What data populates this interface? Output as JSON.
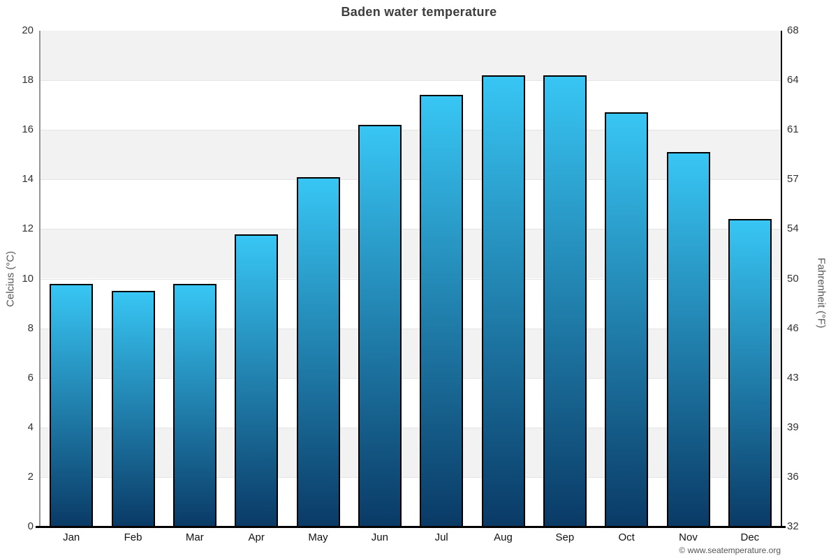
{
  "chart_data": {
    "type": "bar",
    "title": "Baden water temperature",
    "categories": [
      "Jan",
      "Feb",
      "Mar",
      "Apr",
      "May",
      "Jun",
      "Jul",
      "Aug",
      "Sep",
      "Oct",
      "Nov",
      "Dec"
    ],
    "values": [
      9.8,
      9.5,
      9.8,
      11.8,
      14.1,
      16.2,
      17.4,
      18.2,
      18.2,
      16.7,
      15.1,
      12.4
    ],
    "unit": "°C",
    "ylabel_left": "Celcius (°C)",
    "ylabel_right": "Fahrenheit (°F)",
    "ylim": [
      0,
      20
    ],
    "yticks_left": [
      0,
      2,
      4,
      6,
      8,
      10,
      12,
      14,
      16,
      18,
      20
    ],
    "yticks_right": [
      32,
      36,
      39,
      43,
      46,
      50,
      54,
      57,
      61,
      64,
      68
    ],
    "legend": "none",
    "grid": "alternating horizontal bands every 2°C",
    "colors": {
      "bar_top": "#38c6f4",
      "bar_bottom": "#0a3a66",
      "bar_border": "#000000",
      "band_gray": "#f2f2f2",
      "band_white": "#ffffff",
      "gridline": "#e4e4e4",
      "baseline": "#000000",
      "title_color": "#3d3d3d",
      "tick_color": "#333333",
      "axis_title_color": "#555555"
    }
  },
  "footer": {
    "copyright": "© www.seatemperature.org"
  }
}
